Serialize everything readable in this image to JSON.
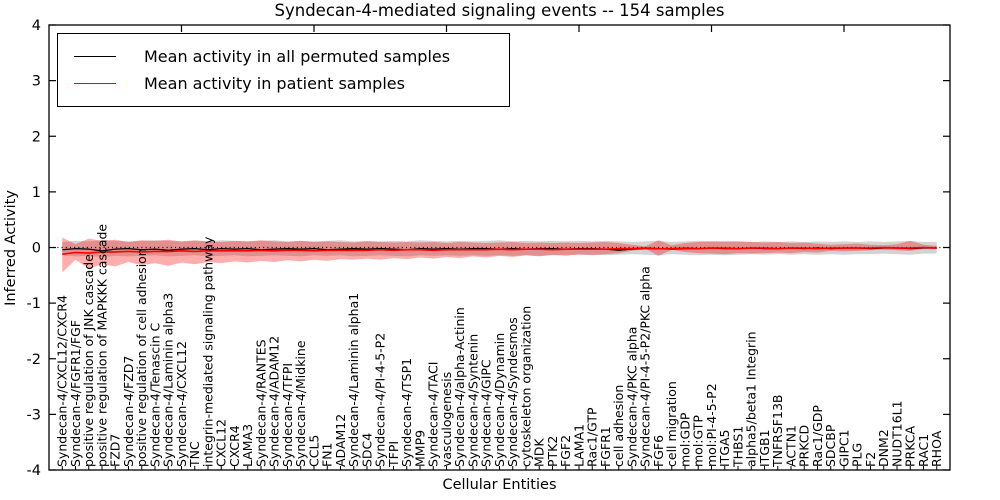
{
  "chart_data": {
    "type": "line",
    "title": "Syndecan-4-mediated signaling events -- 154 samples",
    "xlabel": "Cellular Entities",
    "ylabel": "Inferred Activity",
    "ylim": [
      -4,
      4
    ],
    "yticks": [
      -4,
      -3,
      -2,
      -1,
      0,
      1,
      2,
      3,
      4
    ],
    "grid": false,
    "legend_position": "upper left",
    "zero_line": {
      "y": 0,
      "style": "dotted",
      "color": "#000000"
    },
    "categories": [
      "Syndecan-4/CXCL12/CXCR4",
      "Syndecan-4/FGFR1/FGF",
      "positive regulation of JNK cascade",
      "positive regulation of MAPKKK cascade",
      "FZD7",
      "Syndecan-4/FZD7",
      "positive regulation of cell adhesion",
      "Syndecan-4/Tenascin C",
      "Syndecan-4/Laminin alpha3",
      "Syndecan-4/CXCL12",
      "TNC",
      "integrin-mediated signaling pathway",
      "CXCL12",
      "CXCR4",
      "LAMA3",
      "Syndecan-4/RANTES",
      "Syndecan-4/ADAM12",
      "Syndecan-4/TFPI",
      "Syndecan-4/Midkine",
      "CCL5",
      "FN1",
      "ADAM12",
      "Syndecan-4/Laminin alpha1",
      "SDC4",
      "Syndecan-4/PI-4-5-P2",
      "TFPI",
      "Syndecan-4/TSP1",
      "MMP9",
      "Syndecan-4/TACI",
      "vasculogenesis",
      "Syndecan-4/alpha-Actinin",
      "Syndecan-4/Syntenin",
      "Syndecan-4/GIPC",
      "Syndecan-4/Dynamin",
      "Syndecan-4/Syndesmos",
      "cytoskeleton organization",
      "MDK",
      "PTK2",
      "FGF2",
      "LAMA1",
      "Rac1/GTP",
      "FGFR1",
      "cell adhesion",
      "Syndecan-4/PKC alpha",
      "Syndecan-4/PI-4-5-P2/PKC alpha",
      "FGF6",
      "cell migration",
      "mol:GDP",
      "mol:GTP",
      "mol:PI-4-5-P2",
      "ITGA5",
      "THBS1",
      "alpha5/beta1 Integrin",
      "ITGB1",
      "TNFRSF13B",
      "ACTN1",
      "PRKCD",
      "Rac1/GDP",
      "SDCBP",
      "GIPC1",
      "PLG",
      "F2",
      "DNM2",
      "NUDT16L1",
      "PRKCA",
      "RAC1",
      "RHOA"
    ],
    "series": [
      {
        "name": "Mean activity in all permuted samples",
        "color": "#000000",
        "band_color": "#808080",
        "band_opacity": 0.35,
        "values": [
          -0.04,
          -0.02,
          -0.03,
          -0.06,
          -0.03,
          -0.02,
          -0.04,
          -0.03,
          -0.05,
          -0.03,
          -0.02,
          -0.04,
          -0.02,
          -0.03,
          -0.02,
          -0.04,
          -0.03,
          -0.02,
          -0.03,
          -0.02,
          -0.04,
          -0.03,
          -0.02,
          -0.03,
          -0.02,
          -0.03,
          -0.04,
          -0.02,
          -0.03,
          -0.02,
          -0.03,
          -0.02,
          -0.02,
          -0.03,
          -0.02,
          -0.03,
          -0.02,
          -0.02,
          -0.03,
          -0.02,
          -0.02,
          -0.03,
          -0.05,
          -0.03,
          -0.02,
          -0.02,
          -0.03,
          -0.02,
          -0.02,
          -0.01,
          -0.02,
          -0.02,
          -0.01,
          -0.02,
          -0.02,
          -0.01,
          -0.02,
          -0.01,
          -0.02,
          -0.01,
          -0.01,
          -0.02,
          -0.01,
          -0.01,
          -0.02,
          -0.01,
          -0.01
        ],
        "band_upper": [
          0.1,
          0.12,
          0.11,
          0.13,
          0.12,
          0.11,
          0.12,
          0.13,
          0.12,
          0.11,
          0.12,
          0.11,
          0.13,
          0.12,
          0.11,
          0.12,
          0.13,
          0.11,
          0.12,
          0.11,
          0.12,
          0.13,
          0.11,
          0.12,
          0.11,
          0.12,
          0.11,
          0.13,
          0.12,
          0.11,
          0.12,
          0.11,
          0.12,
          0.13,
          0.11,
          0.12,
          0.11,
          0.12,
          0.11,
          0.12,
          0.11,
          0.12,
          0.11,
          0.1,
          0.11,
          0.12,
          0.1,
          0.11,
          0.12,
          0.11,
          0.12,
          0.11,
          0.1,
          0.11,
          0.1,
          0.11,
          0.1,
          0.11,
          0.1,
          0.11,
          0.1,
          0.11,
          0.1,
          0.11,
          0.12,
          0.1,
          0.1
        ],
        "band_lower": [
          -0.14,
          -0.16,
          -0.15,
          -0.17,
          -0.15,
          -0.16,
          -0.15,
          -0.14,
          -0.16,
          -0.15,
          -0.14,
          -0.16,
          -0.15,
          -0.14,
          -0.16,
          -0.15,
          -0.14,
          -0.15,
          -0.16,
          -0.14,
          -0.15,
          -0.14,
          -0.16,
          -0.15,
          -0.14,
          -0.15,
          -0.16,
          -0.14,
          -0.15,
          -0.14,
          -0.15,
          -0.14,
          -0.15,
          -0.14,
          -0.15,
          -0.14,
          -0.15,
          -0.14,
          -0.13,
          -0.14,
          -0.13,
          -0.14,
          -0.13,
          -0.12,
          -0.13,
          -0.14,
          -0.12,
          -0.13,
          -0.14,
          -0.13,
          -0.14,
          -0.13,
          -0.12,
          -0.13,
          -0.12,
          -0.13,
          -0.12,
          -0.13,
          -0.12,
          -0.13,
          -0.12,
          -0.12,
          -0.11,
          -0.12,
          -0.13,
          -0.11,
          -0.11
        ]
      },
      {
        "name": "Mean activity in patient samples",
        "color": "#ff0000",
        "band_color": "#ff0000",
        "band_opacity": 0.32,
        "values": [
          -0.12,
          -0.09,
          -0.1,
          -0.08,
          -0.08,
          -0.07,
          -0.08,
          -0.07,
          -0.07,
          -0.06,
          -0.07,
          -0.06,
          -0.06,
          -0.06,
          -0.06,
          -0.05,
          -0.06,
          -0.05,
          -0.05,
          -0.06,
          -0.05,
          -0.05,
          -0.05,
          -0.05,
          -0.04,
          -0.05,
          -0.04,
          -0.04,
          -0.05,
          -0.04,
          -0.04,
          -0.04,
          -0.04,
          -0.03,
          -0.04,
          -0.03,
          -0.03,
          -0.04,
          -0.03,
          -0.03,
          -0.03,
          -0.03,
          -0.02,
          -0.02,
          -0.01,
          -0.02,
          -0.02,
          -0.01,
          -0.02,
          -0.01,
          -0.01,
          -0.02,
          -0.01,
          -0.01,
          -0.02,
          -0.01,
          -0.01,
          -0.02,
          -0.01,
          -0.01,
          -0.01,
          -0.01,
          0.0,
          -0.01,
          -0.01,
          0.0,
          -0.01
        ],
        "band_upper": [
          0.18,
          0.06,
          0.16,
          0.12,
          0.14,
          0.1,
          0.13,
          0.12,
          0.14,
          0.11,
          0.13,
          0.11,
          0.1,
          0.12,
          0.11,
          0.13,
          0.11,
          0.1,
          0.12,
          0.1,
          0.11,
          0.1,
          0.09,
          0.11,
          0.1,
          0.09,
          0.1,
          0.09,
          0.1,
          0.08,
          0.1,
          0.09,
          0.08,
          0.09,
          0.1,
          0.08,
          0.09,
          0.08,
          0.09,
          0.08,
          0.09,
          0.1,
          0.08,
          0.05,
          0.02,
          0.13,
          0.04,
          0.08,
          0.1,
          0.11,
          0.1,
          0.11,
          0.1,
          0.09,
          0.1,
          0.08,
          0.09,
          0.07,
          0.05,
          0.06,
          0.07,
          0.05,
          0.04,
          0.06,
          0.12,
          0.05,
          0.03
        ],
        "band_lower": [
          -0.45,
          -0.22,
          -0.38,
          -0.3,
          -0.34,
          -0.26,
          -0.32,
          -0.28,
          -0.33,
          -0.27,
          -0.3,
          -0.26,
          -0.28,
          -0.25,
          -0.27,
          -0.24,
          -0.26,
          -0.23,
          -0.25,
          -0.22,
          -0.24,
          -0.21,
          -0.22,
          -0.2,
          -0.22,
          -0.19,
          -0.21,
          -0.18,
          -0.2,
          -0.17,
          -0.19,
          -0.16,
          -0.18,
          -0.15,
          -0.17,
          -0.14,
          -0.16,
          -0.13,
          -0.15,
          -0.12,
          -0.14,
          -0.12,
          -0.1,
          -0.06,
          -0.02,
          -0.15,
          -0.04,
          -0.08,
          -0.1,
          -0.11,
          -0.12,
          -0.1,
          -0.11,
          -0.1,
          -0.09,
          -0.1,
          -0.08,
          -0.09,
          -0.06,
          -0.07,
          -0.06,
          -0.05,
          -0.04,
          -0.05,
          -0.06,
          -0.03,
          -0.03
        ]
      }
    ]
  }
}
